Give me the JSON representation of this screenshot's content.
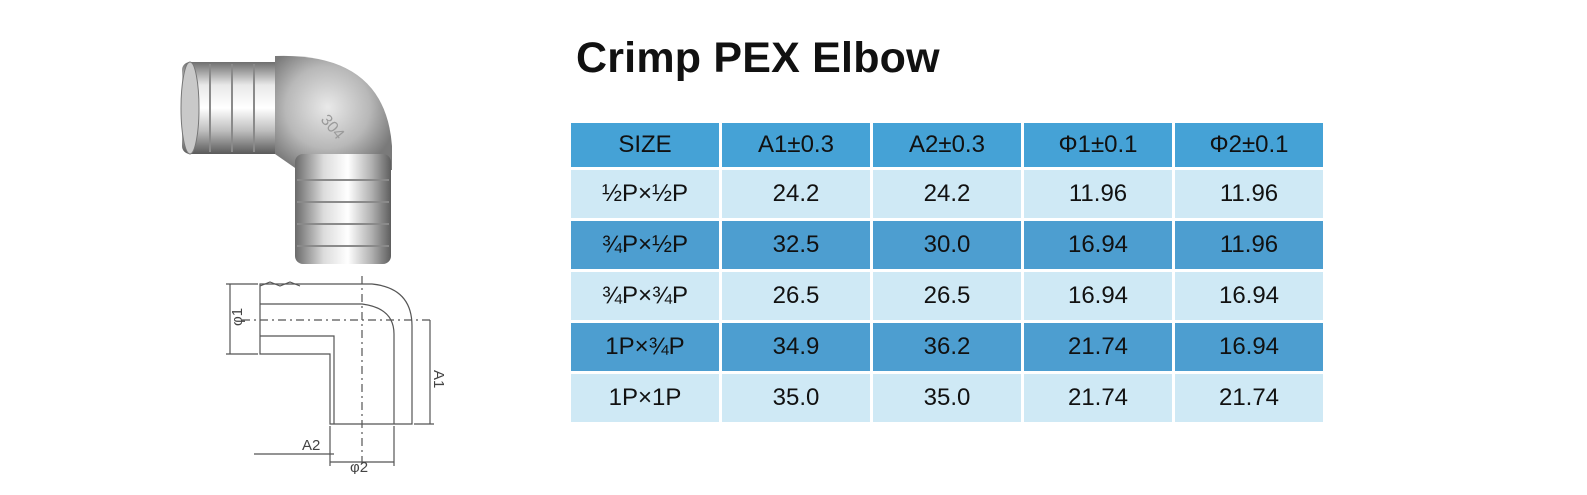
{
  "title": "Crimp PEX Elbow",
  "photo": {
    "marking": "304"
  },
  "drawing": {
    "label_phi1": "φ1",
    "label_a1": "A1",
    "label_a2": "A2",
    "label_phi2": "φ2"
  },
  "table": {
    "headers": [
      "SIZE",
      "A1±0.3",
      "A2±0.3",
      "Φ1±0.1",
      "Φ2±0.1"
    ],
    "rows": [
      [
        "½P×½P",
        "24.2",
        "24.2",
        "11.96",
        "11.96"
      ],
      [
        "¾P×½P",
        "32.5",
        "30.0",
        "16.94",
        "11.96"
      ],
      [
        "¾P×¾P",
        "26.5",
        "26.5",
        "16.94",
        "16.94"
      ],
      [
        "1P×¾P",
        "34.9",
        "36.2",
        "21.74",
        "16.94"
      ],
      [
        "1P×1P",
        "35.0",
        "35.0",
        "21.74",
        "21.74"
      ]
    ]
  },
  "colors": {
    "header": "#45a2d6",
    "row_light": "#cfe9f5",
    "row_dark": "#4d9ed0"
  }
}
